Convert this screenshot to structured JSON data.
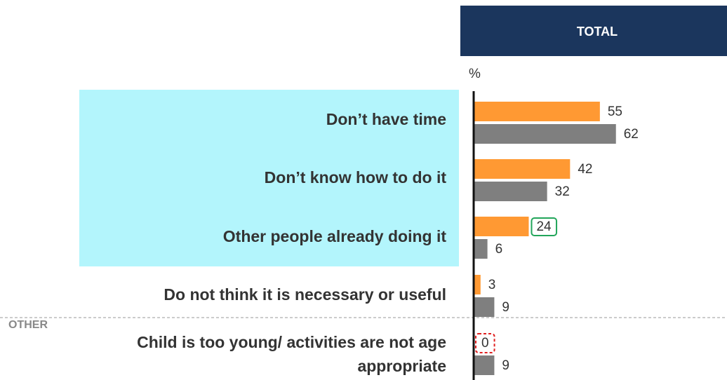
{
  "chart_data": {
    "type": "hbar",
    "header": "TOTAL",
    "unit_label": "%",
    "group_label": "OTHER",
    "categories": [
      "Don’t have time",
      "Don’t know how to do it",
      "Other people already doing it",
      "Do not think it is necessary or useful",
      "Child is too young/ activities are not age appropriate"
    ],
    "series": [
      {
        "color": "#ff9933",
        "values": [
          55,
          42,
          24,
          3,
          0
        ]
      },
      {
        "color": "#7f7f7f",
        "values": [
          62,
          32,
          6,
          9,
          9
        ]
      }
    ],
    "xlim": [
      0,
      100
    ]
  }
}
